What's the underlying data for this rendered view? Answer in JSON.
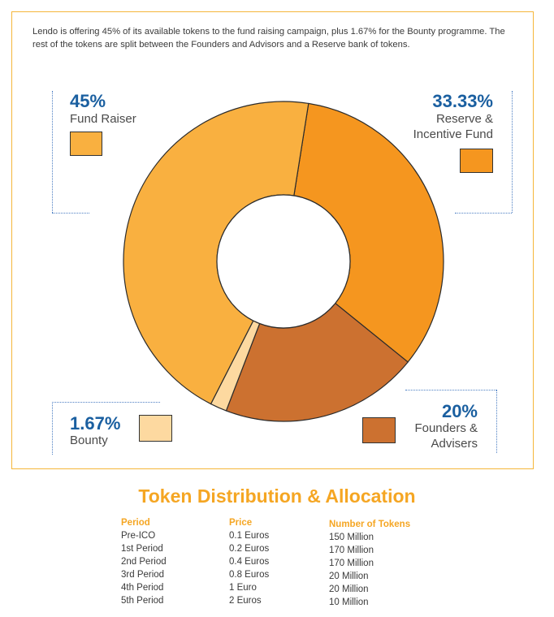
{
  "intro": "Lendo is offering 45% of its available tokens to the fund raising campaign, plus 1.67% for the Bounty programme. The rest of the tokens are split between the Founders and Advisors and a Reserve bank of tokens.",
  "chart_data": {
    "type": "pie",
    "title": "",
    "slices": [
      {
        "name": "Fund Raiser",
        "label": "Fund Raiser",
        "value": 45,
        "pct_label": "45%",
        "color": "#f9b040"
      },
      {
        "name": "Reserve & Incentive Fund",
        "label": "Reserve &\nIncentive Fund",
        "value": 33.33,
        "pct_label": "33.33%",
        "color": "#f5961f"
      },
      {
        "name": "Founders & Advisers",
        "label": "Founders &\nAdvisers",
        "value": 20,
        "pct_label": "20%",
        "color": "#cc7130"
      },
      {
        "name": "Bounty",
        "label": "Bounty",
        "value": 1.67,
        "pct_label": "1.67%",
        "color": "#fdd9a0"
      }
    ],
    "donut": true
  },
  "table": {
    "title": "Token Distribution & Allocation",
    "headers": {
      "period": "Period",
      "price": "Price",
      "tokens": "Number of Tokens"
    },
    "rows": [
      {
        "period": "Pre-ICO",
        "price": "0.1 Euros",
        "tokens": "150 Million"
      },
      {
        "period": "1st Period",
        "price": "0.2 Euros",
        "tokens": "170 Million"
      },
      {
        "period": "2nd Period",
        "price": "0.4 Euros",
        "tokens": "170 Million"
      },
      {
        "period": "3rd Period",
        "price": "0.8 Euros",
        "tokens": "20 Million"
      },
      {
        "period": "4th Period",
        "price": "1 Euro",
        "tokens": "20 Million"
      },
      {
        "period": "5th Period",
        "price": "2 Euros",
        "tokens": "10 Million"
      }
    ]
  }
}
